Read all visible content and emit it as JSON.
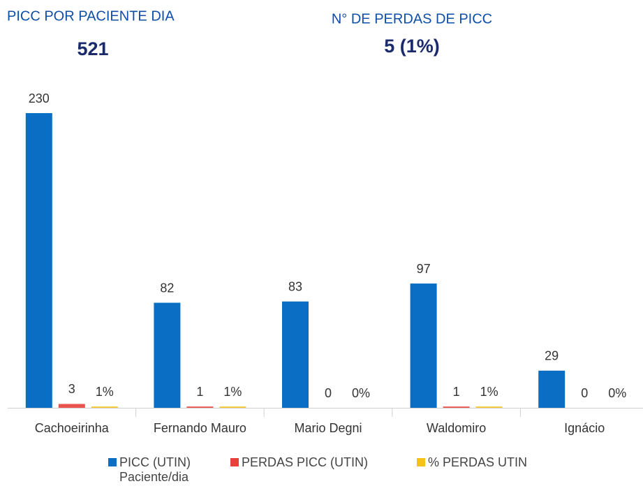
{
  "kpis": [
    {
      "label": "PICC POR PACIENTE DIA",
      "value": "521"
    },
    {
      "label": "N° DE PERDAS DE PICC",
      "value": "5 (1%)"
    }
  ],
  "chart_data": {
    "type": "bar",
    "categories": [
      "Cachoeirinha",
      "Fernando Mauro",
      "Mario Degni",
      "Waldomiro",
      "Ignácio"
    ],
    "series": [
      {
        "name": "PICC (UTIN) Paciente/dia",
        "color": "#0a6fc4",
        "values": [
          230,
          82,
          83,
          97,
          29
        ]
      },
      {
        "name": "PERDAS PICC (UTIN)",
        "color": "#e8413b",
        "values": [
          3,
          1,
          0,
          1,
          0
        ]
      },
      {
        "name": "% PERDAS UTIN",
        "color": "#f6c21a",
        "values": [
          1,
          1,
          0,
          1,
          0
        ],
        "value_labels": [
          "1%",
          "1%",
          "0%",
          "1%",
          "0%"
        ]
      }
    ]
  }
}
